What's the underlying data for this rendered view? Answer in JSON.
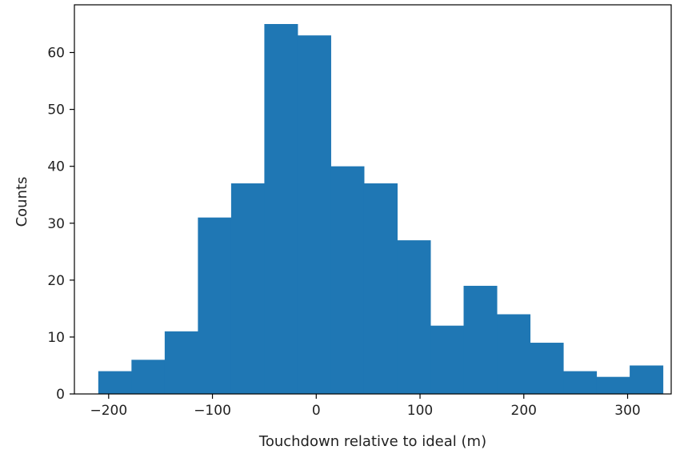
{
  "chart_data": {
    "type": "bar",
    "title": "",
    "xlabel": "Touchdown relative to ideal (m)",
    "ylabel": "Counts",
    "xlim": [
      -233,
      342
    ],
    "ylim": [
      0,
      65
    ],
    "x_ticks": [
      -200,
      -100,
      0,
      100,
      200,
      300
    ],
    "y_ticks": [
      0,
      10,
      20,
      30,
      40,
      50,
      60
    ],
    "bin_edges": [
      -210,
      -178,
      -146,
      -114,
      -82,
      -50,
      -18,
      14,
      46,
      78,
      110,
      142,
      174,
      206,
      238,
      270,
      302,
      334
    ],
    "values": [
      4,
      6,
      11,
      31,
      37,
      65,
      63,
      40,
      37,
      27,
      12,
      19,
      14,
      9,
      4,
      3,
      5
    ],
    "bar_color": "#1f77b4",
    "grid": false
  }
}
